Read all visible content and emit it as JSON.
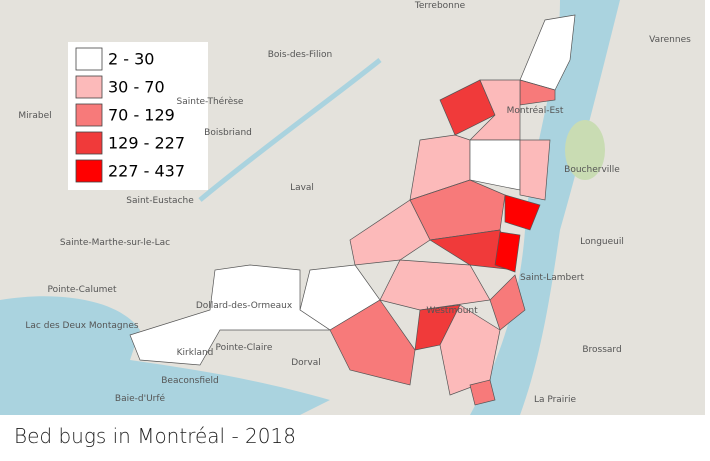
{
  "legend": {
    "items": [
      {
        "label": "2 - 30",
        "color": "#ffffff"
      },
      {
        "label": "30 - 70",
        "color": "#fcbaba"
      },
      {
        "label": "70 - 129",
        "color": "#f77a7a"
      },
      {
        "label": "129 - 227",
        "color": "#f03a3a"
      },
      {
        "label": "227 - 437",
        "color": "#ff0000"
      }
    ]
  },
  "caption": "Bed bugs in Montréal - 2018",
  "places": [
    {
      "label": "Terrebonne"
    },
    {
      "label": "Varennes"
    },
    {
      "label": "Bois-des-Filion"
    },
    {
      "label": "Sainte-Thérèse"
    },
    {
      "label": "Boisbriand"
    },
    {
      "label": "Mirabel"
    },
    {
      "label": "Laval"
    },
    {
      "label": "Saint-Eustache"
    },
    {
      "label": "Sainte-Marthe-sur-le-Lac"
    },
    {
      "label": "Pointe-Calumet"
    },
    {
      "label": "Lac des Deux Montagnes"
    },
    {
      "label": "Montréal-Est"
    },
    {
      "label": "Boucherville"
    },
    {
      "label": "Longueuil"
    },
    {
      "label": "Saint-Lambert"
    },
    {
      "label": "Dollard-des-Ormeaux"
    },
    {
      "label": "Pointe-Claire"
    },
    {
      "label": "Kirkland"
    },
    {
      "label": "Dorval"
    },
    {
      "label": "Beaconsfield"
    },
    {
      "label": "Baie-d'Urfé"
    },
    {
      "label": "Westmount"
    },
    {
      "label": "Brossard"
    },
    {
      "label": "La Prairie"
    }
  ]
}
